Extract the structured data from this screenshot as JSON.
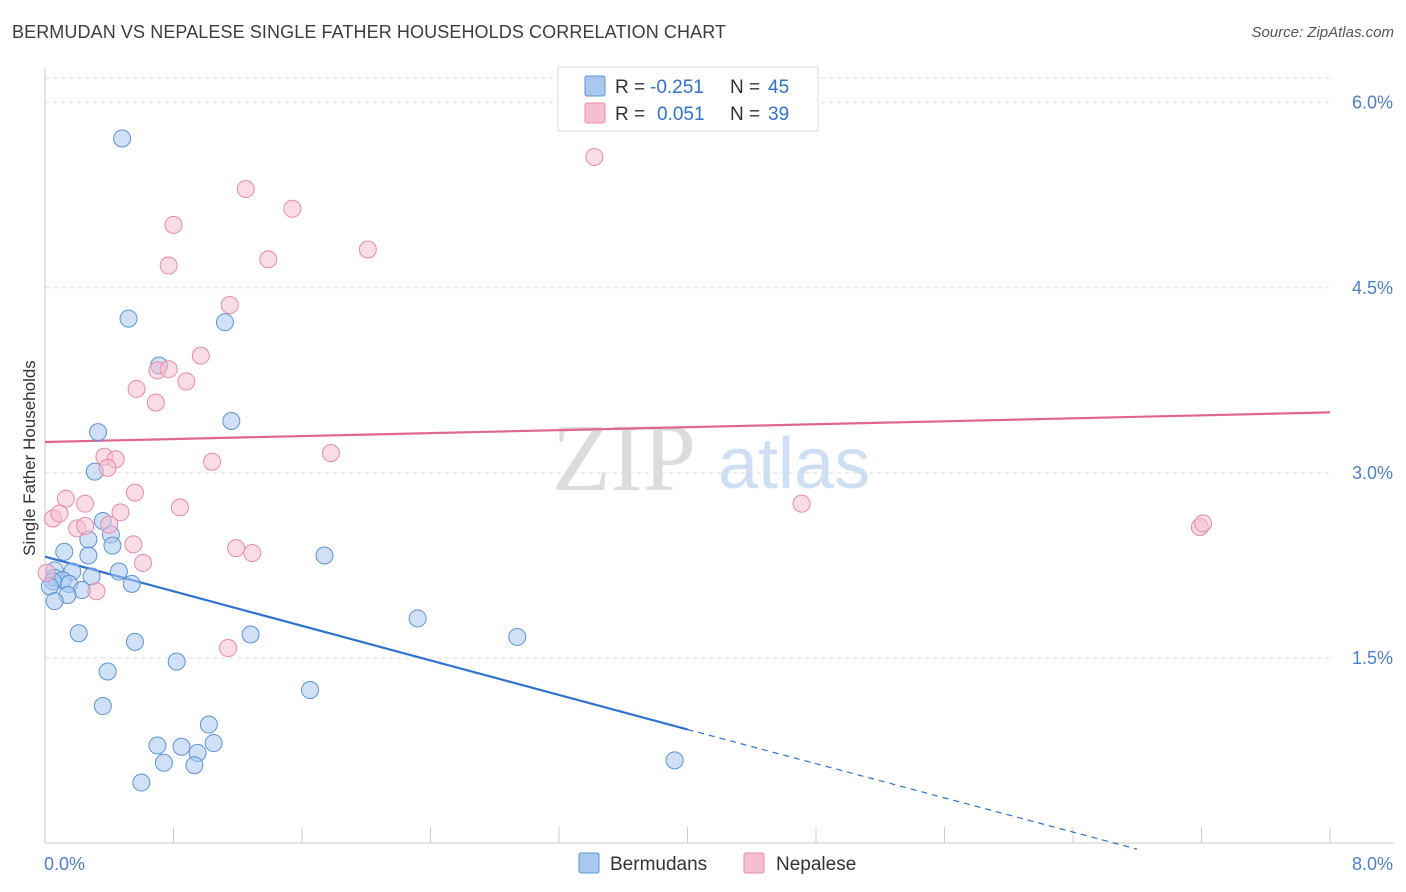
{
  "title": "BERMUDAN VS NEPALESE SINGLE FATHER HOUSEHOLDS CORRELATION CHART",
  "source": "Source: ZipAtlas.com",
  "watermark": {
    "zip": "ZIP",
    "atlas": "atlas"
  },
  "colors": {
    "blue_fill": "#a9c8f0",
    "blue_stroke": "#5b93d8",
    "blue_line": "#2f72d0",
    "pink_fill": "#f6bfd0",
    "pink_stroke": "#e88aa8",
    "pink_line": "#e06690",
    "grid": "#dddddd",
    "axis_text": "#4a7fd0"
  },
  "legend_top": [
    {
      "series": "Bermudans",
      "r_label": "R =",
      "r_value": "-0.251",
      "n_label": "N =",
      "n_value": "45"
    },
    {
      "series": "Nepalese",
      "r_label": "R =",
      "r_value": "0.051",
      "n_label": "N =",
      "n_value": "39"
    }
  ],
  "chart_data": {
    "type": "scatter",
    "title": "BERMUDAN VS NEPALESE SINGLE FATHER HOUSEHOLDS CORRELATION CHART",
    "xlabel": "",
    "ylabel": "Single Father Households",
    "xlim": [
      0,
      8
    ],
    "ylim": [
      0,
      6.2
    ],
    "x_tick_labels": [
      "0.0%",
      "8.0%"
    ],
    "y_ticks": [
      1.5,
      3.0,
      4.5,
      6.0
    ],
    "y_tick_labels": [
      "1.5%",
      "3.0%",
      "4.5%",
      "6.0%"
    ],
    "grid": true,
    "legend_position": "bottom-center",
    "series": [
      {
        "name": "Bermudans",
        "color": "#5b93d8",
        "points": [
          [
            0.48,
            5.71
          ],
          [
            0.52,
            4.25
          ],
          [
            1.12,
            4.22
          ],
          [
            0.71,
            3.87
          ],
          [
            1.16,
            3.42
          ],
          [
            0.33,
            3.33
          ],
          [
            0.31,
            3.01
          ],
          [
            0.36,
            2.61
          ],
          [
            0.41,
            2.5
          ],
          [
            0.27,
            2.46
          ],
          [
            0.42,
            2.41
          ],
          [
            0.27,
            2.33
          ],
          [
            0.12,
            2.36
          ],
          [
            0.06,
            2.21
          ],
          [
            0.17,
            2.2
          ],
          [
            0.06,
            2.15
          ],
          [
            0.11,
            2.13
          ],
          [
            0.29,
            2.16
          ],
          [
            0.05,
            2.12
          ],
          [
            0.15,
            2.1
          ],
          [
            0.46,
            2.2
          ],
          [
            0.54,
            2.1
          ],
          [
            0.03,
            2.08
          ],
          [
            0.23,
            2.05
          ],
          [
            0.14,
            2.01
          ],
          [
            0.06,
            1.96
          ],
          [
            1.74,
            2.33
          ],
          [
            2.32,
            1.82
          ],
          [
            0.21,
            1.7
          ],
          [
            0.56,
            1.63
          ],
          [
            1.28,
            1.69
          ],
          [
            2.94,
            1.67
          ],
          [
            0.82,
            1.47
          ],
          [
            0.39,
            1.39
          ],
          [
            1.65,
            1.24
          ],
          [
            0.36,
            1.11
          ],
          [
            1.02,
            0.96
          ],
          [
            0.7,
            0.79
          ],
          [
            0.85,
            0.78
          ],
          [
            0.95,
            0.73
          ],
          [
            1.05,
            0.81
          ],
          [
            0.74,
            0.65
          ],
          [
            0.93,
            0.63
          ],
          [
            3.92,
            0.67
          ],
          [
            0.6,
            0.49
          ]
        ],
        "trend": {
          "x": [
            0.0,
            4.0
          ],
          "y": [
            2.32,
            0.92
          ],
          "dashed_to": [
            6.8,
            -0.05
          ]
        }
      },
      {
        "name": "Nepalese",
        "color": "#e88aa8",
        "points": [
          [
            3.42,
            5.56
          ],
          [
            1.25,
            5.3
          ],
          [
            1.54,
            5.14
          ],
          [
            0.8,
            5.01
          ],
          [
            1.39,
            4.73
          ],
          [
            2.01,
            4.81
          ],
          [
            0.77,
            4.68
          ],
          [
            1.15,
            4.36
          ],
          [
            0.97,
            3.95
          ],
          [
            0.7,
            3.83
          ],
          [
            0.77,
            3.84
          ],
          [
            0.88,
            3.74
          ],
          [
            0.57,
            3.68
          ],
          [
            0.69,
            3.57
          ],
          [
            1.78,
            3.16
          ],
          [
            0.37,
            3.13
          ],
          [
            0.44,
            3.11
          ],
          [
            0.39,
            3.04
          ],
          [
            1.04,
            3.09
          ],
          [
            0.56,
            2.84
          ],
          [
            0.84,
            2.72
          ],
          [
            0.13,
            2.79
          ],
          [
            0.25,
            2.75
          ],
          [
            0.47,
            2.68
          ],
          [
            0.05,
            2.63
          ],
          [
            0.09,
            2.67
          ],
          [
            0.4,
            2.58
          ],
          [
            0.2,
            2.55
          ],
          [
            0.25,
            2.57
          ],
          [
            4.71,
            2.75
          ],
          [
            7.19,
            2.56
          ],
          [
            7.21,
            2.59
          ],
          [
            0.55,
            2.42
          ],
          [
            1.19,
            2.39
          ],
          [
            1.29,
            2.35
          ],
          [
            0.61,
            2.27
          ],
          [
            0.01,
            2.19
          ],
          [
            0.32,
            2.04
          ],
          [
            1.14,
            1.58
          ]
        ],
        "trend": {
          "x": [
            0.0,
            8.0
          ],
          "y": [
            3.25,
            3.49
          ]
        }
      }
    ]
  }
}
